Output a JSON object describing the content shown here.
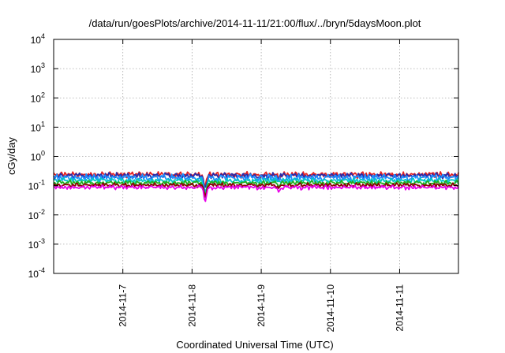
{
  "chart_data": {
    "type": "line",
    "title": "/data/run/goesPlots/archive/2014-11-11/21:00/flux/../bryn/5daysMoon.plot",
    "xlabel": "Coordinated Universal Time (UTC)",
    "ylabel": "cGy/day",
    "y_scale": "log",
    "ylim": [
      0.0001,
      10000
    ],
    "xlim": [
      0,
      5.85
    ],
    "x_ticks": [
      {
        "x": 1,
        "label": "2014-11-7"
      },
      {
        "x": 2,
        "label": "2014-11-8"
      },
      {
        "x": 3,
        "label": "2014-11-9"
      },
      {
        "x": 4,
        "label": "2014-11-10"
      },
      {
        "x": 5,
        "label": "2014-11-11"
      }
    ],
    "y_ticks": [
      {
        "value": 0.0001,
        "base": "10",
        "exp": "-4"
      },
      {
        "value": 0.001,
        "base": "10",
        "exp": "-3"
      },
      {
        "value": 0.01,
        "base": "10",
        "exp": "-2"
      },
      {
        "value": 0.1,
        "base": "10",
        "exp": "-1"
      },
      {
        "value": 1,
        "base": "10",
        "exp": "0"
      },
      {
        "value": 10,
        "base": "10",
        "exp": "1"
      },
      {
        "value": 100,
        "base": "10",
        "exp": "2"
      },
      {
        "value": 1000,
        "base": "10",
        "exp": "3"
      },
      {
        "value": 10000,
        "base": "10",
        "exp": "4"
      }
    ],
    "grid": true,
    "series": [
      {
        "color": "#e52020",
        "base": 0.24,
        "amp": 0.22,
        "seed": 1
      },
      {
        "color": "#2a2aa8",
        "base": 0.22,
        "amp": 0.22,
        "seed": 2
      },
      {
        "color": "#1e90ff",
        "base": 0.19,
        "amp": 0.28,
        "seed": 3
      },
      {
        "color": "#00c8c8",
        "base": 0.15,
        "amp": 0.2,
        "seed": 4
      },
      {
        "color": "#20b020",
        "base": 0.125,
        "amp": 0.18,
        "seed": 5
      },
      {
        "color": "#8b0000",
        "base": 0.105,
        "amp": 0.16,
        "seed": 6
      },
      {
        "color": "#e800e8",
        "base": 0.088,
        "amp": 0.16,
        "seed": 7
      }
    ],
    "dips": [
      {
        "x": 2.18,
        "depth": 0.55
      },
      {
        "x": 2.2,
        "depth": 0.6
      },
      {
        "x": 2.95,
        "depth": 0.2
      },
      {
        "x": 3.25,
        "depth": 0.25
      }
    ]
  }
}
